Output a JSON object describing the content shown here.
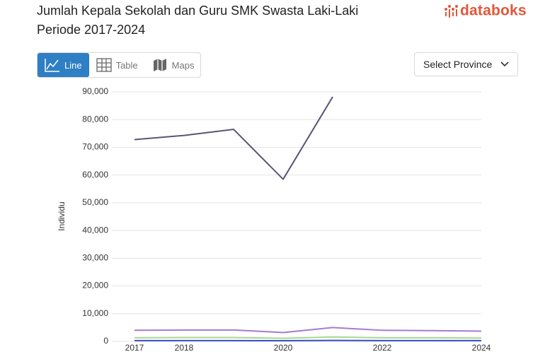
{
  "header": {
    "title_lines": [
      "Jumlah Kepala Sekolah dan Guru SMK Swasta Laki-Laki",
      "Periode 2017-2024"
    ],
    "logo": "databoks"
  },
  "tabs": [
    "Line",
    "Table",
    "Maps"
  ],
  "select": "Select Province",
  "chart_data": {
    "type": "line",
    "y_label": "Individu",
    "x": [
      2017,
      2018,
      2019,
      2020,
      2021,
      2022,
      2023,
      2024
    ],
    "xlim": [
      2017,
      2024
    ],
    "xticks": [
      2017,
      2018,
      2020,
      2022,
      2024
    ],
    "ylim": [
      0,
      90000
    ],
    "yticks": [
      {
        "value": 0,
        "label": "0"
      },
      {
        "value": 10000,
        "label": "10,000"
      },
      {
        "value": 20000,
        "label": "20,000"
      },
      {
        "value": 30000,
        "label": "30,000"
      },
      {
        "value": 40000,
        "label": "40,000"
      },
      {
        "value": 50000,
        "label": "50,000"
      },
      {
        "value": 60000,
        "label": "60,000"
      },
      {
        "value": 70000,
        "label": "70,000"
      },
      {
        "value": 80000,
        "label": "80,000"
      },
      {
        "value": 90000,
        "label": "90,000"
      }
    ],
    "grid": true,
    "series": [
      {
        "color": "#5c5478",
        "values": [
          72800,
          74300,
          76500,
          58500,
          88200,
          null,
          null,
          null
        ]
      },
      {
        "color": "#a77bcf",
        "values": [
          4000,
          4100,
          4100,
          3200,
          5000,
          4000,
          3900,
          3700
        ]
      },
      {
        "color": "#a8d98a",
        "values": [
          1300,
          1400,
          1400,
          1100,
          1600,
          1300,
          1300,
          1200
        ]
      },
      {
        "color": "#3a4fc4",
        "values": [
          300,
          300,
          300,
          250,
          350,
          300,
          300,
          300
        ]
      }
    ]
  }
}
